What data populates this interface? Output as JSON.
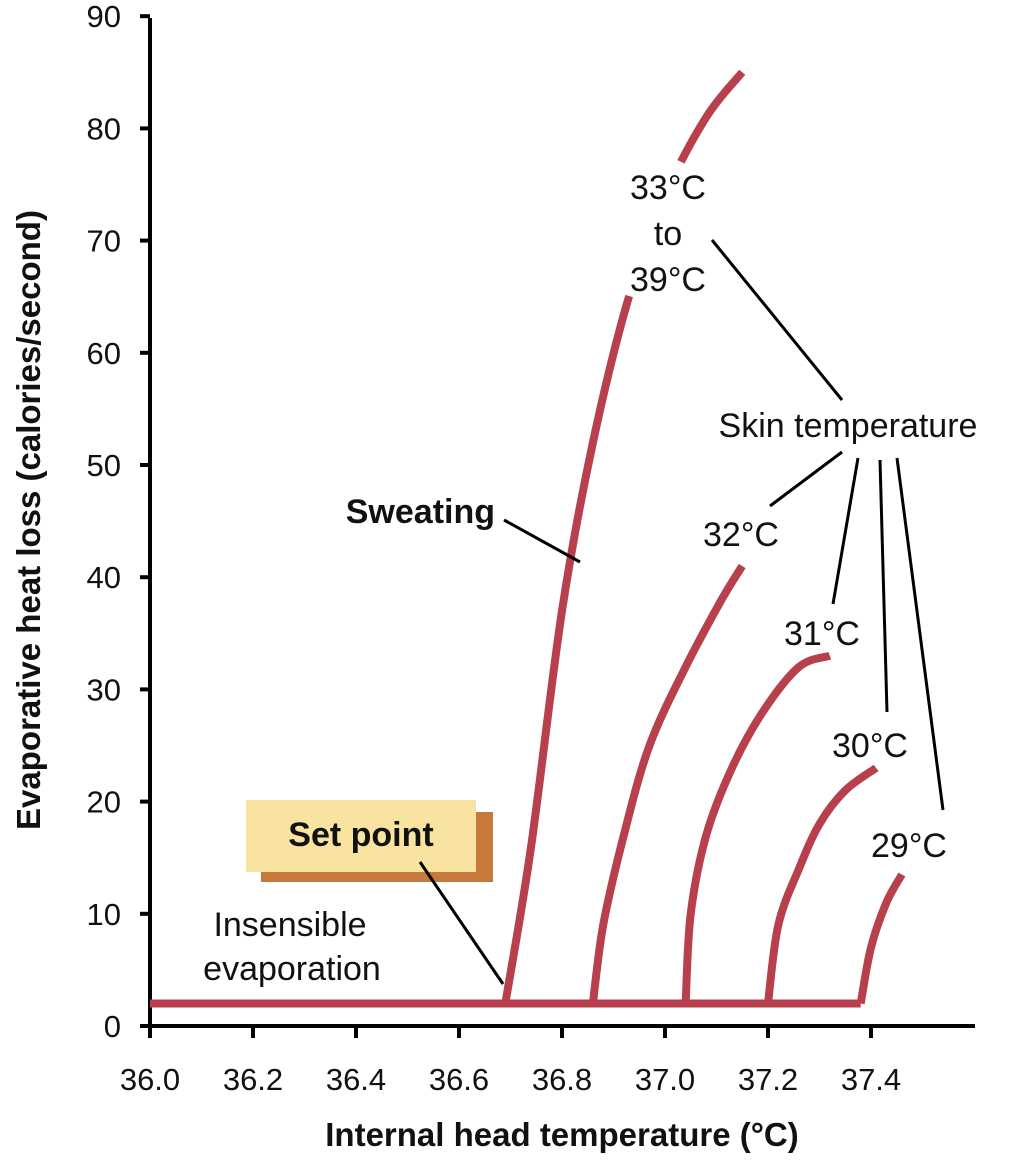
{
  "chart_data": {
    "type": "line",
    "title": "",
    "xlabel": "Internal head temperature (°C)",
    "ylabel": "Evaporative heat loss (calories/second)",
    "xlim": [
      36.0,
      37.6
    ],
    "ylim": [
      0,
      90
    ],
    "x_ticks": [
      36.0,
      36.2,
      36.4,
      36.6,
      36.8,
      37.0,
      37.2,
      37.4
    ],
    "x_tick_labels": [
      "36.0",
      "36.2",
      "36.4",
      "36.6",
      "36.8",
      "37.0",
      "37.2",
      "37.4"
    ],
    "y_ticks": [
      0,
      10,
      20,
      30,
      40,
      50,
      60,
      70,
      80,
      90
    ],
    "y_tick_labels": [
      "0",
      "10",
      "20",
      "30",
      "40",
      "50",
      "60",
      "70",
      "80",
      "90"
    ],
    "grid": false,
    "line_color": "#b8404c",
    "baseline": {
      "x": [
        36.0,
        37.38
      ],
      "y": [
        2,
        2
      ]
    },
    "series": [
      {
        "name": "33°C to 39°C",
        "x": [
          36.69,
          36.74,
          36.8,
          36.86,
          36.93,
          37.0,
          37.08,
          37.15
        ],
        "y": [
          2,
          16,
          37,
          52,
          65,
          74,
          81,
          85
        ],
        "break_y": [
          65,
          77
        ]
      },
      {
        "name": "32°C",
        "x": [
          36.86,
          36.88,
          36.92,
          36.97,
          37.04,
          37.11,
          37.15
        ],
        "y": [
          2,
          9,
          17,
          25,
          32,
          38,
          41
        ]
      },
      {
        "name": "31°C",
        "x": [
          37.04,
          37.05,
          37.08,
          37.13,
          37.19,
          37.26,
          37.32
        ],
        "y": [
          2,
          10,
          17,
          23,
          28,
          32,
          33
        ]
      },
      {
        "name": "30°C",
        "x": [
          37.2,
          37.22,
          37.26,
          37.3,
          37.35,
          37.41
        ],
        "y": [
          2,
          9,
          14,
          18,
          21,
          23
        ]
      },
      {
        "name": "29°C",
        "x": [
          37.38,
          37.4,
          37.43,
          37.46
        ],
        "y": [
          2,
          7,
          11,
          13.5
        ]
      }
    ],
    "annotations": {
      "sweating": "Sweating",
      "set_point": "Set point",
      "insensible_line1": "Insensible",
      "insensible_line2": "evaporation",
      "skin_temperature": "Skin temperature",
      "range_top": "33°C",
      "range_mid": "to",
      "range_bottom": "39°C",
      "label_32": "32°C",
      "label_31": "31°C",
      "label_30": "30°C",
      "label_29": "29°C"
    },
    "set_point_box": {
      "fill": "#f9e3a0",
      "shadow": "#c6793a"
    }
  }
}
